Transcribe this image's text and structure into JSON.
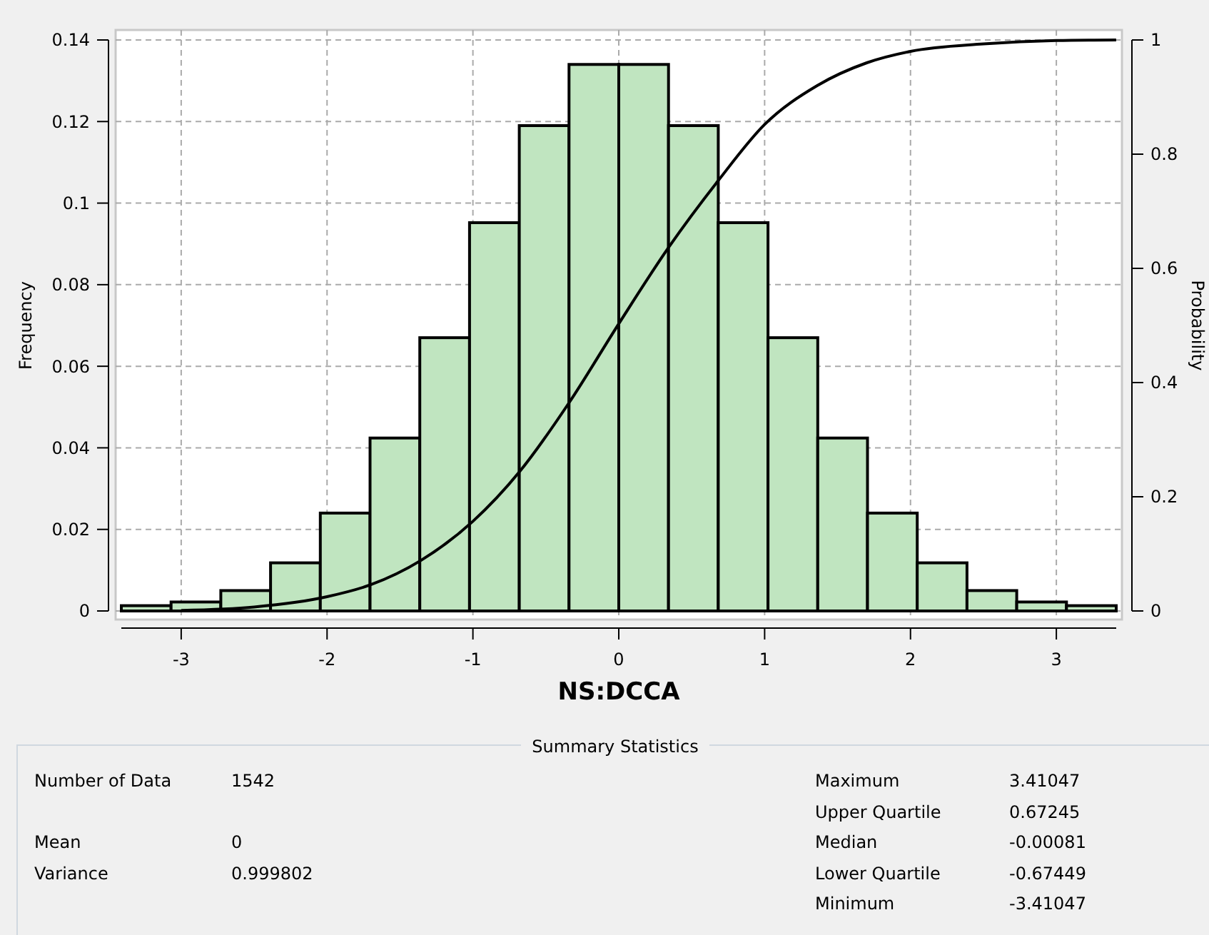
{
  "chart_data": {
    "type": "histogram",
    "xlabel": "NS:DCCA",
    "ylabel": "Frequency",
    "y2label": "Probability",
    "bins": [
      -3.41047,
      -3.06942,
      -2.72838,
      -2.38733,
      -2.04628,
      -1.70524,
      -1.36419,
      -1.02314,
      -0.68209,
      -0.34105,
      0,
      0.34105,
      0.68209,
      1.02314,
      1.36419,
      1.70524,
      2.04628,
      2.38733,
      2.72838,
      3.06942,
      3.41047
    ],
    "values": [
      0.0013,
      0.0022,
      0.005,
      0.0118,
      0.024,
      0.0424,
      0.067,
      0.0952,
      0.119,
      0.134,
      0.134,
      0.119,
      0.0952,
      0.067,
      0.0424,
      0.024,
      0.0118,
      0.005,
      0.0022,
      0.0013
    ],
    "color": "#c0e5c0",
    "series": [
      {
        "type": "line",
        "axis": "y2",
        "color": "#000000",
        "x": [
          -3,
          -2.5,
          -2,
          -1.7,
          -1.36,
          -1,
          -0.68,
          -0.34,
          0,
          0.34,
          0.68,
          1,
          1.36,
          1.7,
          2,
          2.5,
          3,
          3.41
        ],
        "values": [
          0.001,
          0.007,
          0.025,
          0.046,
          0.088,
          0.157,
          0.244,
          0.365,
          0.503,
          0.636,
          0.753,
          0.852,
          0.92,
          0.96,
          0.98,
          0.993,
          0.999,
          1
        ]
      }
    ],
    "xlim": [
      -3.41047,
      3.41047
    ],
    "xticks": [
      -3,
      -2,
      -1,
      0,
      1,
      2,
      3
    ],
    "ylim": [
      0,
      0.14
    ],
    "yticks": [
      0,
      0.02,
      0.04,
      0.06,
      0.08,
      0.1,
      0.12,
      0.14
    ],
    "y2lim": [
      0,
      1
    ],
    "y2ticks": [
      0,
      0.2,
      0.4,
      0.6,
      0.8,
      1
    ],
    "grid": true,
    "annotations": [
      "Summary Statistics",
      "Number of Data",
      "1542",
      "Mean",
      "0",
      "Variance",
      "0.999802",
      "Maximum",
      "3.41047",
      "Upper Quartile",
      "0.67245",
      "Median",
      "-0.00081",
      "Lower Quartile",
      "-0.67449",
      "Minimum",
      "-3.41047"
    ]
  }
}
